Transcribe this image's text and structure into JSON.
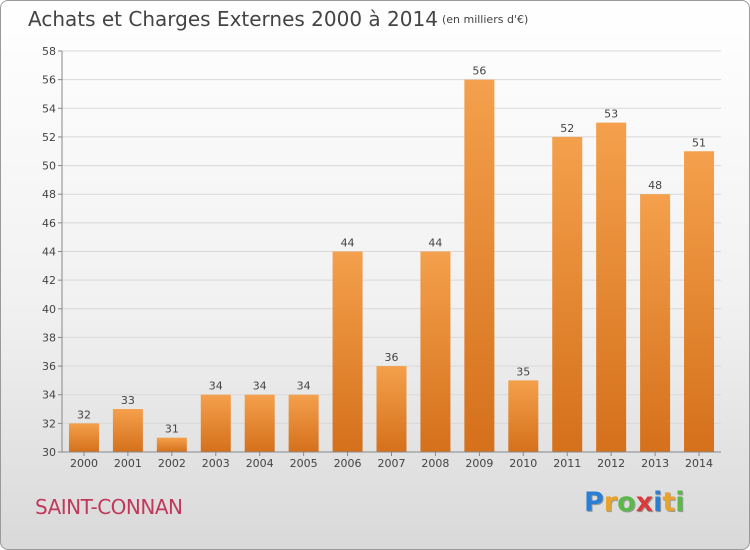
{
  "header": {
    "title": "Achats et Charges Externes 2000 à 2014",
    "unit": "(en milliers d'€)"
  },
  "footer": {
    "commune": "SAINT-CONNAN",
    "brand": [
      "P",
      "r",
      "o",
      "x",
      "i",
      "t",
      "i"
    ],
    "brand_colors": [
      "#2a7fd4",
      "#e8a32c",
      "#5bb84a",
      "#d93a3a",
      "#2a7fd4",
      "#e8a32c",
      "#5bb84a"
    ]
  },
  "colors": {
    "bar_top": "#f4a04c",
    "bar_bottom": "#d5701b",
    "grid": "#d8d8d8",
    "axis_text": "#444444"
  },
  "chart_data": {
    "type": "bar",
    "categories": [
      "2000",
      "2001",
      "2002",
      "2003",
      "2004",
      "2005",
      "2006",
      "2007",
      "2008",
      "2009",
      "2010",
      "2011",
      "2012",
      "2013",
      "2014"
    ],
    "values": [
      32,
      33,
      31,
      34,
      34,
      34,
      44,
      36,
      44,
      56,
      35,
      52,
      53,
      48,
      51
    ],
    "ylim": [
      30,
      58
    ],
    "yticks": [
      30,
      32,
      34,
      36,
      38,
      40,
      42,
      44,
      46,
      48,
      50,
      52,
      54,
      56,
      58
    ],
    "grid": true,
    "data_labels": true
  }
}
